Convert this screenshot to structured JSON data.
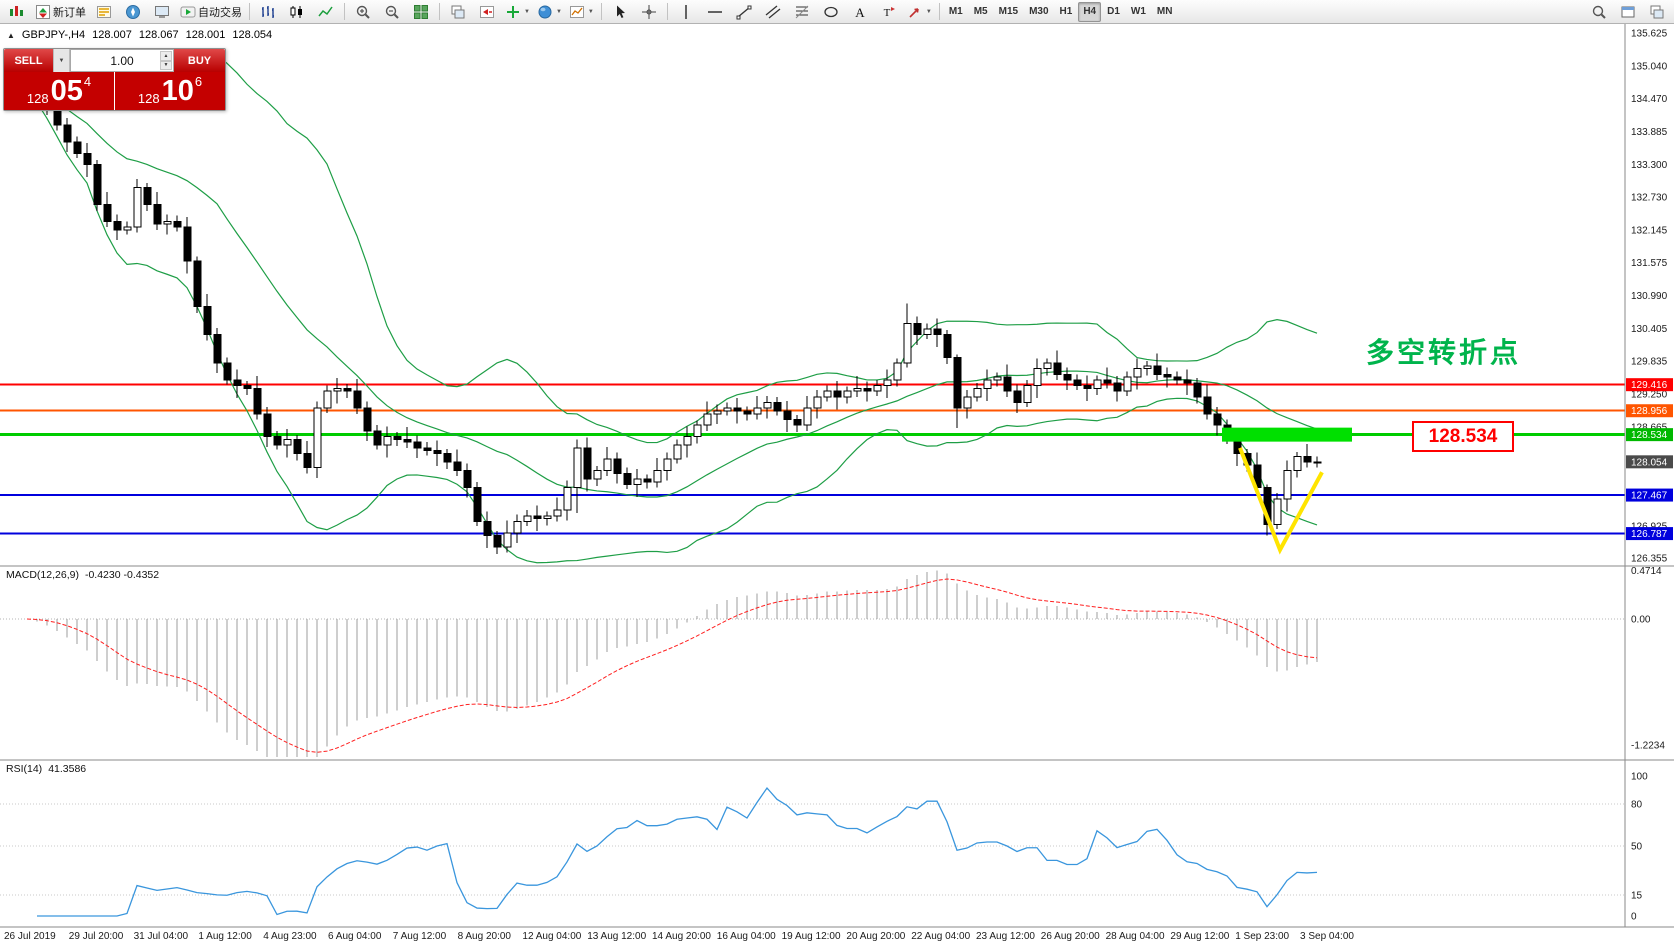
{
  "toolbar": {
    "items": [
      {
        "name": "app-menu-button",
        "icon": "app"
      },
      {
        "name": "new-order-button",
        "icon": "new-order",
        "label": "新订单"
      },
      {
        "name": "market-watch-button",
        "icon": "market-watch"
      },
      {
        "name": "navigator-button",
        "icon": "navigator"
      },
      {
        "name": "terminal-button",
        "icon": "terminal"
      },
      {
        "name": "autotrading-button",
        "icon": "autotrading",
        "label": "自动交易"
      },
      {
        "sep": true
      },
      {
        "name": "bar-chart-button",
        "icon": "bar-chart"
      },
      {
        "name": "candle-chart-button",
        "icon": "candle-chart"
      },
      {
        "name": "line-chart-button",
        "icon": "line-chart"
      },
      {
        "sep": true
      },
      {
        "name": "zoom-in-button",
        "icon": "zoom-in"
      },
      {
        "name": "zoom-out-button",
        "icon": "zoom-out"
      },
      {
        "name": "tile-windows-button",
        "icon": "tile"
      },
      {
        "sep": true
      },
      {
        "name": "auto-scroll-button",
        "icon": "cascade"
      },
      {
        "name": "chart-shift-button",
        "icon": "shift"
      },
      {
        "name": "indicators-button",
        "icon": "indicators",
        "dropdown": true
      },
      {
        "name": "profiles-button",
        "icon": "profiles",
        "dropdown": true
      },
      {
        "name": "templates-button",
        "icon": "templates",
        "dropdown": true
      },
      {
        "sep": true
      },
      {
        "name": "cursor-button",
        "icon": "cursor"
      },
      {
        "name": "crosshair-button",
        "icon": "crosshair"
      },
      {
        "sep": true
      },
      {
        "name": "vertical-line-button",
        "icon": "vline"
      },
      {
        "name": "horizontal-line-button",
        "icon": "hline"
      },
      {
        "name": "trendline-button",
        "icon": "trendline"
      },
      {
        "name": "channel-button",
        "icon": "channel"
      },
      {
        "name": "fibonacci-button",
        "icon": "fibonacci"
      },
      {
        "name": "shapes-button",
        "icon": "shapes"
      },
      {
        "name": "text-button",
        "icon": "text"
      },
      {
        "name": "text-label-button",
        "icon": "label"
      },
      {
        "name": "arrows-button",
        "icon": "arrows",
        "dropdown": true
      },
      {
        "sep": true
      }
    ],
    "timeframes": [
      "M1",
      "M5",
      "M15",
      "M30",
      "H1",
      "H4",
      "D1",
      "W1",
      "MN"
    ],
    "active_timeframe": "H4",
    "right_items": [
      {
        "name": "search-button",
        "icon": "search"
      },
      {
        "name": "window-button",
        "icon": "window"
      },
      {
        "name": "layout-button",
        "icon": "cascade"
      }
    ]
  },
  "trade_panel": {
    "sell_label": "SELL",
    "buy_label": "BUY",
    "volume": "1.00",
    "sell_price_prefix": "128",
    "sell_price_big": "05",
    "sell_price_sup": "4",
    "buy_price_prefix": "128",
    "buy_price_big": "10",
    "buy_price_sup": "6"
  },
  "annotation": {
    "text": "多空转折点",
    "color": "#00b44c"
  },
  "price_label_box": {
    "text": "128.534"
  },
  "chart_data": {
    "type": "candlestick",
    "title": "GBPJPY-,H4",
    "symbol": "GBPJPY",
    "timeframe": "H4",
    "ohlc_display": {
      "open": "128.007",
      "high": "128.067",
      "low": "128.001",
      "close": "128.054"
    },
    "bollinger": {
      "period": 20,
      "deviation": 2,
      "color": "#1e9e46"
    },
    "macd": {
      "label": "MACD(12,26,9)",
      "values_text": "-0.4230 -0.4352",
      "scale_labels": [
        "0.4714",
        "0.00",
        "-1.2234"
      ],
      "histogram_color": "#9e9e9e",
      "signal_color": "#ff2020"
    },
    "rsi": {
      "label": "RSI(14)",
      "value_text": "41.3586",
      "scale_labels": [
        100,
        80,
        50,
        15,
        0
      ],
      "levels": [
        80,
        50,
        15
      ],
      "color": "#3a96dd"
    },
    "horizontal_lines": [
      {
        "price": 129.416,
        "color": "#ff0000",
        "width": 2
      },
      {
        "price": 128.956,
        "color": "#ff5500",
        "width": 2
      },
      {
        "price": 128.534,
        "color": "#00cc00",
        "width": 3
      },
      {
        "price": 127.467,
        "color": "#0000dd",
        "width": 2
      },
      {
        "price": 126.787,
        "color": "#0000dd",
        "width": 2
      }
    ],
    "highlight": {
      "price": 128.534,
      "i1": 120,
      "i2": 132,
      "height": 14,
      "color": "#00e000"
    },
    "check_drawing": {
      "color": "#ffe400",
      "points": [
        [
          121.3,
          128.3
        ],
        [
          125.3,
          126.5
        ],
        [
          129.5,
          127.87
        ]
      ]
    },
    "y_axis": {
      "labels": [
        "135.625",
        "135.040",
        "134.470",
        "133.885",
        "133.300",
        "132.730",
        "132.145",
        "131.575",
        "130.990",
        "130.405",
        "129.835",
        "129.250",
        "128.665",
        "126.925",
        "126.355"
      ],
      "badges": [
        {
          "value": 129.416,
          "text": "129.416",
          "color": "#ff0000"
        },
        {
          "value": 128.956,
          "text": "128.956",
          "color": "#ff5500"
        },
        {
          "value": 128.534,
          "text": "128.534",
          "color": "#00b800"
        },
        {
          "value": 128.054,
          "text": "128.054",
          "color": "#4a4a4a"
        },
        {
          "value": 127.467,
          "text": "127.467",
          "color": "#0000dd"
        },
        {
          "value": 126.787,
          "text": "126.787",
          "color": "#0000dd"
        }
      ]
    },
    "x_axis": {
      "labels": [
        "26 Jul 2019",
        "29 Jul 20:00",
        "31 Jul 04:00",
        "1 Aug 12:00",
        "4 Aug 23:00",
        "6 Aug 04:00",
        "7 Aug 12:00",
        "8 Aug 20:00",
        "12 Aug 04:00",
        "13 Aug 12:00",
        "14 Aug 20:00",
        "16 Aug 04:00",
        "19 Aug 12:00",
        "20 Aug 20:00",
        "22 Aug 04:00",
        "23 Aug 12:00",
        "26 Aug 20:00",
        "28 Aug 04:00",
        "29 Aug 12:00",
        "1 Sep 23:00",
        "3 Sep 04:00"
      ]
    },
    "candles": [
      [
        134.95,
        135.05,
        134.77,
        134.85
      ],
      [
        134.85,
        135.03,
        134.33,
        134.55
      ],
      [
        134.55,
        134.63,
        134.18,
        134.3
      ],
      [
        134.3,
        134.52,
        133.9,
        134.0
      ],
      [
        134.0,
        134.12,
        133.52,
        133.7
      ],
      [
        133.7,
        133.8,
        133.42,
        133.5
      ],
      [
        133.5,
        133.68,
        133.08,
        133.3
      ],
      [
        133.3,
        133.38,
        132.48,
        132.6
      ],
      [
        132.6,
        132.82,
        132.2,
        132.3
      ],
      [
        132.3,
        132.42,
        131.97,
        132.15
      ],
      [
        132.15,
        132.3,
        132.07,
        132.2
      ],
      [
        132.2,
        133.05,
        132.1,
        132.9
      ],
      [
        132.9,
        132.98,
        132.48,
        132.6
      ],
      [
        132.6,
        132.82,
        132.15,
        132.25
      ],
      [
        132.25,
        132.42,
        132.07,
        132.3
      ],
      [
        132.3,
        132.4,
        132.12,
        132.2
      ],
      [
        132.2,
        132.38,
        131.38,
        131.6
      ],
      [
        131.6,
        131.68,
        130.68,
        130.8
      ],
      [
        130.8,
        131.02,
        130.2,
        130.3
      ],
      [
        130.3,
        130.42,
        129.62,
        129.8
      ],
      [
        129.8,
        129.9,
        129.42,
        129.5
      ],
      [
        129.5,
        129.68,
        129.18,
        129.4
      ],
      [
        129.4,
        129.48,
        129.23,
        129.35
      ],
      [
        129.35,
        129.57,
        128.8,
        128.9
      ],
      [
        128.9,
        129.02,
        128.32,
        128.5
      ],
      [
        128.5,
        128.6,
        128.27,
        128.35
      ],
      [
        128.35,
        128.63,
        128.13,
        128.45
      ],
      [
        128.45,
        128.53,
        128.08,
        128.2
      ],
      [
        128.2,
        128.42,
        127.85,
        127.95
      ],
      [
        127.95,
        129.12,
        127.77,
        129.0
      ],
      [
        129.0,
        129.4,
        128.92,
        129.3
      ],
      [
        129.3,
        129.53,
        129.08,
        129.35
      ],
      [
        129.35,
        129.43,
        129.18,
        129.3
      ],
      [
        129.3,
        129.52,
        128.9,
        129.0
      ],
      [
        129.0,
        129.12,
        128.42,
        128.6
      ],
      [
        128.6,
        128.7,
        128.27,
        128.35
      ],
      [
        128.35,
        128.68,
        128.13,
        128.5
      ],
      [
        128.5,
        128.58,
        128.33,
        128.45
      ],
      [
        128.45,
        128.67,
        128.3,
        128.4
      ],
      [
        128.4,
        128.52,
        128.12,
        128.3
      ],
      [
        128.3,
        128.4,
        128.17,
        128.25
      ],
      [
        128.25,
        128.43,
        127.98,
        128.2
      ],
      [
        128.2,
        128.28,
        127.93,
        128.05
      ],
      [
        128.05,
        128.27,
        127.8,
        127.9
      ],
      [
        127.9,
        128.02,
        127.42,
        127.6
      ],
      [
        127.6,
        127.7,
        126.92,
        127.0
      ],
      [
        127.0,
        127.18,
        126.53,
        126.75
      ],
      [
        126.75,
        126.83,
        126.43,
        126.55
      ],
      [
        126.55,
        127.02,
        126.45,
        126.8
      ],
      [
        126.8,
        127.12,
        126.62,
        127.0
      ],
      [
        127.0,
        127.2,
        126.92,
        127.1
      ],
      [
        127.1,
        127.28,
        126.83,
        127.05
      ],
      [
        127.05,
        127.18,
        126.93,
        127.1
      ],
      [
        127.1,
        127.42,
        127.0,
        127.2
      ],
      [
        127.2,
        127.72,
        127.02,
        127.6
      ],
      [
        127.6,
        128.45,
        127.15,
        128.3
      ],
      [
        128.3,
        128.48,
        127.53,
        127.75
      ],
      [
        127.75,
        127.98,
        127.63,
        127.9
      ],
      [
        127.9,
        128.32,
        127.8,
        128.1
      ],
      [
        128.1,
        128.22,
        127.67,
        127.85
      ],
      [
        127.85,
        127.95,
        127.57,
        127.65
      ],
      [
        127.65,
        127.93,
        127.43,
        127.75
      ],
      [
        127.75,
        127.83,
        127.58,
        127.7
      ],
      [
        127.7,
        128.12,
        127.6,
        127.9
      ],
      [
        127.9,
        128.22,
        127.72,
        128.1
      ],
      [
        128.1,
        128.45,
        128.02,
        128.35
      ],
      [
        128.35,
        128.68,
        128.13,
        128.5
      ],
      [
        128.5,
        128.78,
        128.38,
        128.7
      ],
      [
        128.7,
        129.12,
        128.6,
        128.9
      ],
      [
        128.9,
        129.07,
        128.72,
        128.95
      ],
      [
        128.95,
        129.1,
        128.87,
        129.0
      ],
      [
        129.0,
        129.18,
        128.73,
        128.95
      ],
      [
        128.95,
        129.03,
        128.78,
        128.9
      ],
      [
        128.9,
        129.22,
        128.8,
        129.0
      ],
      [
        129.0,
        129.22,
        128.82,
        129.1
      ],
      [
        129.1,
        129.2,
        128.87,
        128.95
      ],
      [
        128.95,
        129.13,
        128.58,
        128.8
      ],
      [
        128.8,
        128.88,
        128.58,
        128.7
      ],
      [
        128.7,
        129.22,
        128.6,
        129.0
      ],
      [
        129.0,
        129.32,
        128.82,
        129.2
      ],
      [
        129.2,
        129.4,
        129.12,
        129.3
      ],
      [
        129.3,
        129.48,
        128.98,
        129.2
      ],
      [
        129.2,
        129.38,
        129.08,
        129.3
      ],
      [
        129.3,
        129.57,
        129.2,
        129.35
      ],
      [
        129.35,
        129.47,
        129.12,
        129.3
      ],
      [
        129.3,
        129.5,
        129.22,
        129.4
      ],
      [
        129.4,
        129.68,
        129.18,
        129.5
      ],
      [
        129.5,
        129.88,
        129.38,
        129.8
      ],
      [
        129.8,
        130.85,
        129.72,
        130.5
      ],
      [
        130.5,
        130.62,
        130.12,
        130.3
      ],
      [
        130.3,
        130.5,
        130.22,
        130.4
      ],
      [
        130.4,
        130.58,
        130.08,
        130.3
      ],
      [
        130.3,
        130.38,
        129.78,
        129.9
      ],
      [
        129.9,
        129.95,
        128.65,
        129.0
      ],
      [
        129.0,
        129.32,
        128.82,
        129.2
      ],
      [
        129.2,
        129.45,
        129.12,
        129.35
      ],
      [
        129.35,
        129.68,
        129.13,
        129.5
      ],
      [
        129.5,
        129.63,
        129.38,
        129.55
      ],
      [
        129.55,
        129.77,
        129.2,
        129.3
      ],
      [
        129.3,
        129.42,
        128.92,
        129.1
      ],
      [
        129.1,
        129.5,
        129.02,
        129.4
      ],
      [
        129.4,
        129.88,
        129.18,
        129.7
      ],
      [
        129.7,
        129.88,
        129.58,
        129.8
      ],
      [
        129.8,
        130.02,
        129.5,
        129.6
      ],
      [
        129.6,
        129.72,
        129.32,
        129.5
      ],
      [
        129.5,
        129.6,
        129.32,
        129.4
      ],
      [
        129.4,
        129.58,
        129.13,
        129.35
      ],
      [
        129.35,
        129.58,
        129.23,
        129.5
      ],
      [
        129.5,
        129.72,
        129.35,
        129.45
      ],
      [
        129.45,
        129.57,
        129.12,
        129.3
      ],
      [
        129.3,
        129.65,
        129.22,
        129.55
      ],
      [
        129.55,
        129.88,
        129.33,
        129.7
      ],
      [
        129.7,
        129.83,
        129.58,
        129.75
      ],
      [
        129.75,
        129.97,
        129.5,
        129.6
      ],
      [
        129.6,
        129.72,
        129.37,
        129.55
      ],
      [
        129.55,
        129.65,
        129.42,
        129.5
      ],
      [
        129.5,
        129.68,
        129.23,
        129.45
      ],
      [
        129.45,
        129.53,
        129.08,
        129.2
      ],
      [
        129.2,
        129.42,
        128.8,
        128.9
      ],
      [
        128.9,
        129.02,
        128.52,
        128.7
      ],
      [
        128.7,
        128.8,
        128.37,
        128.45
      ],
      [
        128.45,
        128.63,
        127.98,
        128.2
      ],
      [
        128.2,
        128.28,
        127.88,
        128.0
      ],
      [
        128.0,
        128.22,
        127.5,
        127.6
      ],
      [
        127.6,
        127.65,
        126.75,
        126.95
      ],
      [
        126.95,
        127.5,
        126.87,
        127.4
      ],
      [
        127.4,
        128.08,
        127.18,
        127.9
      ],
      [
        127.9,
        128.23,
        127.78,
        128.15
      ],
      [
        128.15,
        128.37,
        127.95,
        128.05
      ],
      [
        128.05,
        128.15,
        127.95,
        128.05
      ]
    ]
  }
}
